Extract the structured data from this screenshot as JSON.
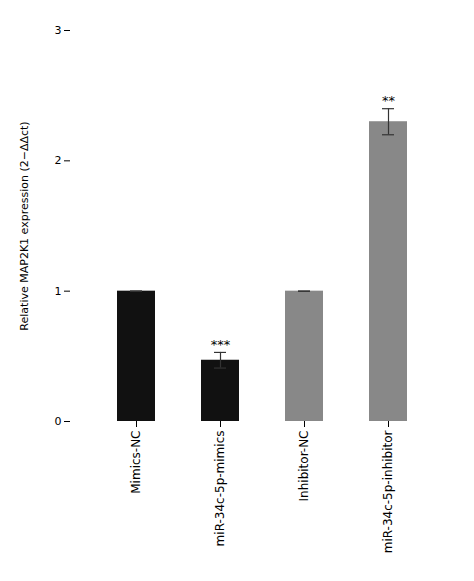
{
  "chart_data": {
    "type": "bar",
    "categories": [
      "Mimics-NC",
      "miR-34c-5p-mimics",
      "Inhibitor-NC",
      "miR-34c-5p-inhibitor"
    ],
    "values": [
      1.0,
      0.47,
      1.0,
      2.3
    ],
    "errors": [
      0.0,
      0.06,
      0.0,
      0.1
    ],
    "colors": [
      "#111111",
      "#111111",
      "#888888",
      "#888888"
    ],
    "significance": [
      null,
      "***",
      null,
      "**"
    ],
    "ylabel": "Relative MAP2K1 expression (2−ΔΔct)",
    "ylim": [
      0,
      3
    ],
    "yticks": [
      0,
      1,
      2,
      3
    ],
    "grid": false
  }
}
